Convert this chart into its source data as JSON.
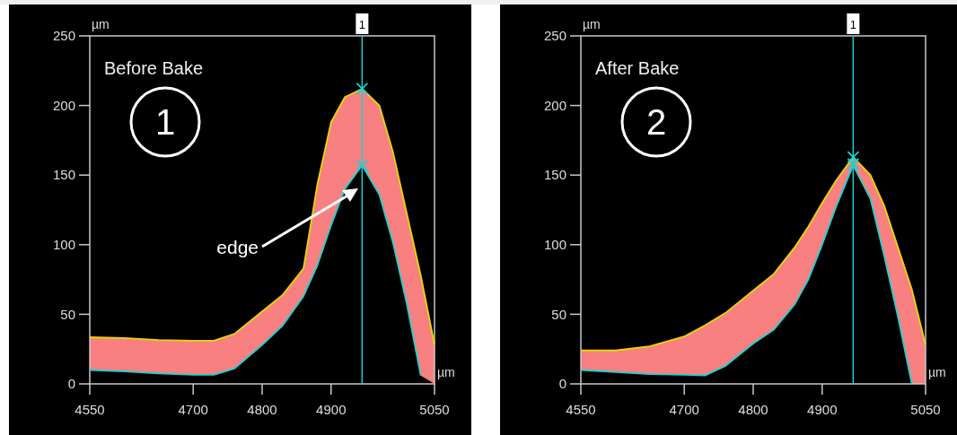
{
  "chart_data": [
    {
      "type": "line",
      "title": "Before Bake",
      "xlabel": "µm",
      "ylabel": "µm",
      "xlim": [
        4550,
        5050
      ],
      "ylim": [
        0,
        250
      ],
      "xticks": [
        4550,
        4700,
        4800,
        4900,
        5050
      ],
      "yticks": [
        0,
        50,
        100,
        150,
        200,
        250
      ],
      "grid": false,
      "annotations": [
        "1",
        "edge",
        {
          "text": "1",
          "x": 4945,
          "y": 250
        }
      ],
      "ref_lines": [
        {
          "axis": "x",
          "value": 4945,
          "color": "#19d3d3"
        }
      ],
      "x": [
        4550,
        4600,
        4650,
        4700,
        4730,
        4760,
        4800,
        4830,
        4860,
        4880,
        4900,
        4920,
        4945,
        4970,
        4990,
        5010,
        5030,
        5050
      ],
      "series": [
        {
          "color": "#e6d800",
          "values": [
            33.5,
            33,
            31.5,
            31,
            31,
            36,
            52,
            64,
            83,
            143,
            188,
            206,
            212,
            200,
            166,
            122,
            78,
            28
          ],
          "lower": [
            10,
            9,
            7.5,
            6.5,
            6.5,
            11,
            28,
            42,
            63,
            85,
            114,
            140,
            157,
            136,
            101,
            57,
            6,
            0
          ],
          "upper": [
            33.5,
            33,
            31.5,
            31,
            31,
            36,
            52,
            64,
            83,
            143,
            188,
            206,
            212,
            200,
            166,
            122,
            78,
            28
          ]
        },
        {
          "color": "#19d3d3",
          "values": [
            10,
            9,
            7.5,
            6.5,
            6.5,
            11,
            28,
            42,
            63,
            85,
            114,
            140,
            157,
            136,
            101,
            57,
            6,
            null
          ]
        },
        {
          "type": "scatter",
          "marker": "cross",
          "color": "#19d3d3",
          "values": [
            null,
            null,
            null,
            null,
            null,
            null,
            null,
            null,
            null,
            null,
            null,
            null,
            212,
            null,
            null,
            null,
            null,
            null
          ]
        },
        {
          "type": "scatter",
          "marker": "cross",
          "color": "#19d3d3",
          "values": [
            null,
            null,
            null,
            null,
            null,
            null,
            null,
            null,
            null,
            null,
            null,
            null,
            157,
            null,
            null,
            null,
            null,
            null
          ]
        }
      ]
    },
    {
      "type": "line",
      "title": "After Bake",
      "xlabel": "µm",
      "ylabel": "µm",
      "xlim": [
        4550,
        5050
      ],
      "ylim": [
        0,
        250
      ],
      "xticks": [
        4550,
        4700,
        4800,
        4900,
        5050
      ],
      "yticks": [
        0,
        50,
        100,
        150,
        200,
        250
      ],
      "grid": false,
      "annotations": [
        "2",
        {
          "text": "1",
          "x": 4945,
          "y": 250
        }
      ],
      "ref_lines": [
        {
          "axis": "x",
          "value": 4945,
          "color": "#19d3d3"
        }
      ],
      "x": [
        4550,
        4600,
        4650,
        4700,
        4730,
        4760,
        4800,
        4830,
        4860,
        4880,
        4900,
        4920,
        4945,
        4970,
        4990,
        5010,
        5030,
        5050
      ],
      "series": [
        {
          "color": "#e6d800",
          "values": [
            24,
            24,
            27,
            34,
            42,
            51,
            67,
            79,
            98,
            113,
            130,
            146,
            163,
            150,
            128,
            98,
            68,
            28
          ],
          "lower": [
            10,
            8.5,
            7,
            6.5,
            6,
            13,
            29,
            39,
            57,
            75,
            100,
            127,
            157,
            133,
            92,
            48,
            0,
            0
          ],
          "upper": [
            24,
            24,
            27,
            34,
            42,
            51,
            67,
            79,
            98,
            113,
            130,
            146,
            163,
            150,
            128,
            98,
            68,
            28
          ]
        },
        {
          "color": "#19d3d3",
          "values": [
            10,
            8.5,
            7,
            6.5,
            6,
            13,
            29,
            39,
            57,
            75,
            100,
            127,
            157,
            133,
            92,
            48,
            0,
            null
          ]
        },
        {
          "type": "scatter",
          "marker": "cross",
          "color": "#19d3d3",
          "values": [
            null,
            null,
            null,
            null,
            null,
            null,
            null,
            null,
            null,
            null,
            null,
            null,
            163,
            null,
            null,
            null,
            null,
            null
          ]
        },
        {
          "type": "scatter",
          "marker": "cross",
          "color": "#19d3d3",
          "values": [
            null,
            null,
            null,
            null,
            null,
            null,
            null,
            null,
            null,
            null,
            null,
            null,
            158,
            null,
            null,
            null,
            null,
            null
          ]
        }
      ]
    }
  ]
}
